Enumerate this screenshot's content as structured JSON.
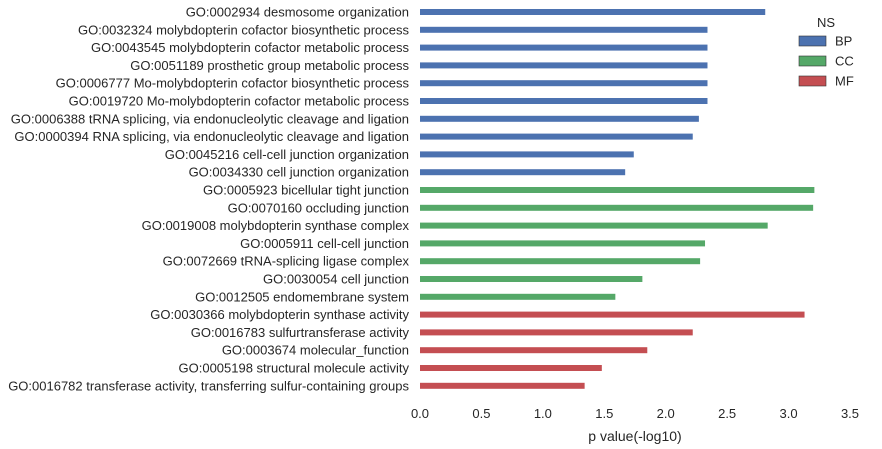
{
  "chart_data": {
    "type": "bar",
    "orientation": "horizontal",
    "xlabel": "p value(-log10)",
    "xlim": [
      0,
      3.5
    ],
    "xticks": [
      "0.0",
      "0.5",
      "1.0",
      "1.5",
      "2.0",
      "2.5",
      "3.0",
      "3.5"
    ],
    "grid": false,
    "legend": {
      "title": "NS",
      "placement": "top-right",
      "entries": [
        {
          "name": "BP",
          "color": "#4c72b0"
        },
        {
          "name": "CC",
          "color": "#55a868"
        },
        {
          "name": "MF",
          "color": "#c44e52"
        }
      ]
    },
    "bars": [
      {
        "label": "GO:0002934 desmosome organization",
        "value": 2.81,
        "ns": "BP"
      },
      {
        "label": "GO:0032324 molybdopterin cofactor biosynthetic process",
        "value": 2.34,
        "ns": "BP"
      },
      {
        "label": "GO:0043545 molybdopterin cofactor metabolic process",
        "value": 2.34,
        "ns": "BP"
      },
      {
        "label": "GO:0051189 prosthetic group metabolic process",
        "value": 2.34,
        "ns": "BP"
      },
      {
        "label": "GO:0006777 Mo-molybdopterin cofactor biosynthetic process",
        "value": 2.34,
        "ns": "BP"
      },
      {
        "label": "GO:0019720 Mo-molybdopterin cofactor metabolic process",
        "value": 2.34,
        "ns": "BP"
      },
      {
        "label": "GO:0006388 tRNA splicing, via endonucleolytic cleavage and ligation",
        "value": 2.27,
        "ns": "BP"
      },
      {
        "label": "GO:0000394 RNA splicing, via endonucleolytic cleavage and ligation",
        "value": 2.22,
        "ns": "BP"
      },
      {
        "label": "GO:0045216 cell-cell junction organization",
        "value": 1.74,
        "ns": "BP"
      },
      {
        "label": "GO:0034330 cell junction organization",
        "value": 1.67,
        "ns": "BP"
      },
      {
        "label": "GO:0005923 bicellular tight junction",
        "value": 3.21,
        "ns": "CC"
      },
      {
        "label": "GO:0070160 occluding junction",
        "value": 3.2,
        "ns": "CC"
      },
      {
        "label": "GO:0019008 molybdopterin synthase complex",
        "value": 2.83,
        "ns": "CC"
      },
      {
        "label": "GO:0005911 cell-cell junction",
        "value": 2.32,
        "ns": "CC"
      },
      {
        "label": "GO:0072669 tRNA-splicing ligase complex",
        "value": 2.28,
        "ns": "CC"
      },
      {
        "label": "GO:0030054 cell junction",
        "value": 1.81,
        "ns": "CC"
      },
      {
        "label": "GO:0012505 endomembrane system",
        "value": 1.59,
        "ns": "CC"
      },
      {
        "label": "GO:0030366 molybdopterin synthase activity",
        "value": 3.13,
        "ns": "MF"
      },
      {
        "label": "GO:0016783 sulfurtransferase activity",
        "value": 2.22,
        "ns": "MF"
      },
      {
        "label": "GO:0003674 molecular_function",
        "value": 1.85,
        "ns": "MF"
      },
      {
        "label": "GO:0005198 structural molecule activity",
        "value": 1.48,
        "ns": "MF"
      },
      {
        "label": "GO:0016782 transferase activity, transferring sulfur-containing groups",
        "value": 1.34,
        "ns": "MF"
      }
    ]
  }
}
